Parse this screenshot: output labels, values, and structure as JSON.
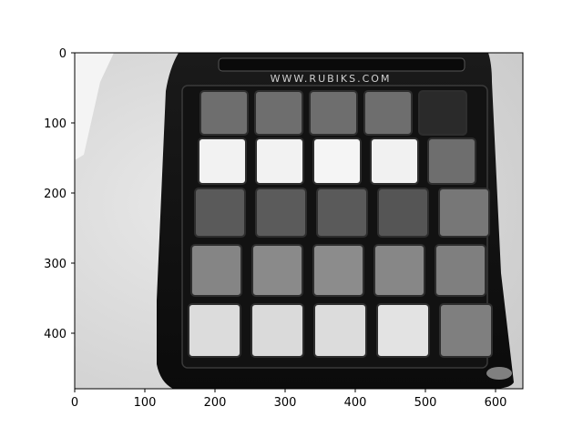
{
  "figure": {
    "image": {
      "width": 640,
      "height": 480,
      "brand_text": "WWW.RUBIKS.COM",
      "grid_rows": [
        {
          "shade": [
            "#6e6e6e",
            "#6e6e6e",
            "#6e6e6e",
            "#6e6e6e",
            "#2a2a2a"
          ]
        },
        {
          "shade": [
            "#f2f2f2",
            "#f2f2f2",
            "#f5f5f5",
            "#f1f1f1",
            "#6e6e6e"
          ]
        },
        {
          "shade": [
            "#5a5a5a",
            "#5b5b5b",
            "#5a5a5a",
            "#555555",
            "#777777"
          ]
        },
        {
          "shade": [
            "#858585",
            "#8a8a8a",
            "#8c8c8c",
            "#878787",
            "#7f7f7f"
          ]
        },
        {
          "shade": [
            "#dcdcdc",
            "#dadada",
            "#dcdcdc",
            "#e3e3e3",
            "#7f7f7f"
          ]
        }
      ]
    },
    "x_ticks": [
      "0",
      "100",
      "200",
      "300",
      "400",
      "500",
      "600"
    ],
    "y_ticks": [
      "0",
      "100",
      "200",
      "300",
      "400"
    ]
  }
}
